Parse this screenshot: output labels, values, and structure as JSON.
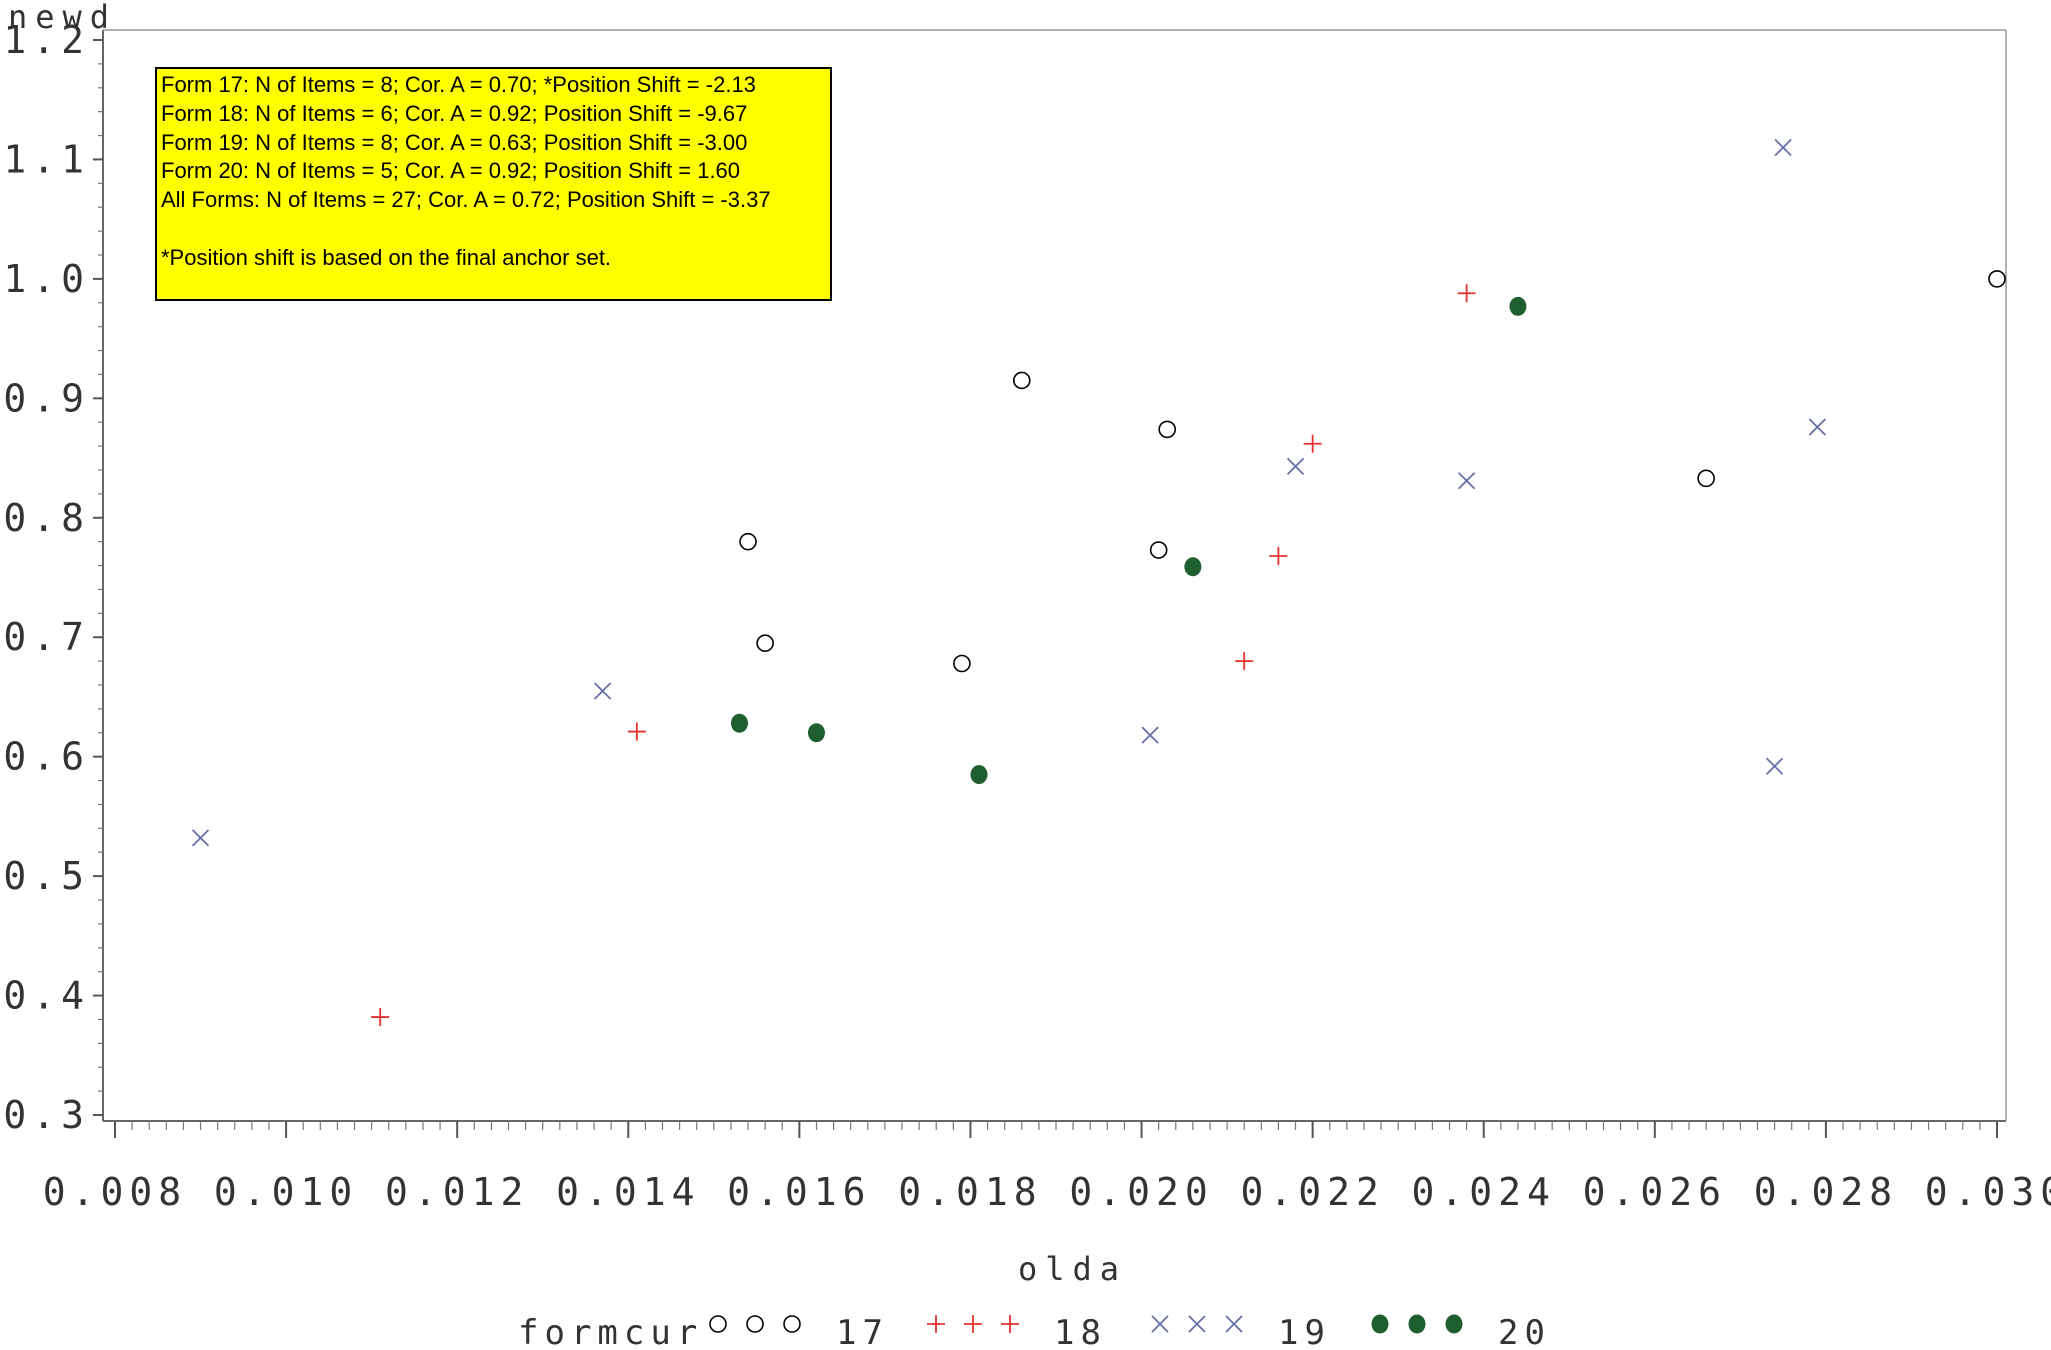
{
  "chart_data": {
    "type": "scatter",
    "xlabel": "olda",
    "ylabel": "newd",
    "xlim": [
      0.008,
      0.03
    ],
    "ylim": [
      0.3,
      1.2
    ],
    "x_ticks": [
      "0.008",
      "0.010",
      "0.012",
      "0.014",
      "0.016",
      "0.018",
      "0.020",
      "0.022",
      "0.024",
      "0.026",
      "0.028",
      "0.030"
    ],
    "y_ticks": [
      "0.3",
      "0.4",
      "0.5",
      "0.6",
      "0.7",
      "0.8",
      "0.9",
      "1.0",
      "1.1",
      "1.2"
    ],
    "grid": false,
    "legend_title": "formcur",
    "legend_position": "bottom",
    "series": [
      {
        "name": "17",
        "marker": "circle-open",
        "color": "#000000",
        "points": [
          [
            0.0154,
            0.78
          ],
          [
            0.0156,
            0.695
          ],
          [
            0.0179,
            0.678
          ],
          [
            0.0186,
            0.915
          ],
          [
            0.0202,
            0.773
          ],
          [
            0.0203,
            0.874
          ],
          [
            0.0266,
            0.833
          ],
          [
            0.03,
            1.0
          ]
        ]
      },
      {
        "name": "18",
        "marker": "plus",
        "color": "#e83030",
        "points": [
          [
            0.0111,
            0.382
          ],
          [
            0.0141,
            0.621
          ],
          [
            0.0212,
            0.68
          ],
          [
            0.0216,
            0.768
          ],
          [
            0.022,
            0.862
          ],
          [
            0.0238,
            0.988
          ]
        ]
      },
      {
        "name": "19",
        "marker": "x",
        "color": "#6670a8",
        "points": [
          [
            0.009,
            0.532
          ],
          [
            0.0137,
            0.655
          ],
          [
            0.0201,
            0.618
          ],
          [
            0.0218,
            0.843
          ],
          [
            0.0238,
            0.831
          ],
          [
            0.0274,
            0.592
          ],
          [
            0.0275,
            1.11
          ],
          [
            0.0279,
            0.876
          ]
        ]
      },
      {
        "name": "20",
        "marker": "dot-filled",
        "color": "#1f5f2f",
        "points": [
          [
            0.0153,
            0.628
          ],
          [
            0.0162,
            0.62
          ],
          [
            0.0181,
            0.585
          ],
          [
            0.0206,
            0.759
          ],
          [
            0.0244,
            0.977
          ]
        ]
      }
    ]
  },
  "info_box": {
    "background": "#ffff00",
    "lines": [
      "Form 17: N of Items = 8; Cor. A = 0.70; *Position Shift = -2.13",
      "Form 18: N of Items = 6; Cor. A = 0.92; Position Shift  = -9.67",
      "Form 19: N of Items = 8; Cor. A = 0.63; Position Shift = -3.00",
      "Form 20: N of Items = 5; Cor. A = 0.92; Position Shift = 1.60",
      "All Forms: N of Items = 27; Cor. A = 0.72; Position Shift = -3.37",
      "",
      "*Position shift is based on the final anchor set."
    ]
  }
}
